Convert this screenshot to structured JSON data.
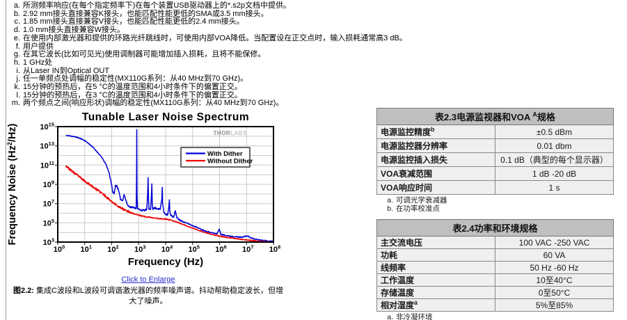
{
  "top_footnotes": [
    {
      "m": "a.",
      "t": "所测频率响应(在每个指定频率下)在每个装置USB驱动器上的*.s2p文档中提供。"
    },
    {
      "m": "b.",
      "t": "2.92 mm接头直接兼容K接头，也能匹配性能更低的SMA或3.5 mm接头。"
    },
    {
      "m": "c.",
      "t": "1.85 mm接头直接兼容V接头，也能匹配性能更低的2.4 mm接头。"
    },
    {
      "m": "d.",
      "t": "1.0 mm接头直接兼容W接头。"
    },
    {
      "m": "e.",
      "t": "在使用内部激光器和提供的环路光纤跳线时，可使用内部VOA降低。当配置设在正交点时，输入损耗通常高3 dB。"
    },
    {
      "m": "f.",
      "t": "用户提供"
    },
    {
      "m": "g.",
      "t": "在其它波长(比如可见光)使用调制器可能增加插入损耗，且将不能保修。"
    },
    {
      "m": "h.",
      "t": "1 GHz处"
    },
    {
      "m": "i.",
      "t": "从Laser IN到Optical OUT"
    },
    {
      "m": "j.",
      "t": "任一单频点处调幅的稳定性(MX110G系列：从40 MHz到70 GHz)。"
    },
    {
      "m": "k.",
      "t": "15分钟的预热后，在5 °C的温度范围和4小时条件下的偏置正交。"
    },
    {
      "m": "l.",
      "t": "15分钟的预热后，在3 °C的温度范围和4小时条件下的偏置正交。"
    },
    {
      "m": "m.",
      "t": "两个频点之间(响应形状)调幅的稳定性(MX110G系列：从40 MHz到70 GHz)。"
    }
  ],
  "figure": {
    "link_label": "Click to Enlarge",
    "caption_prefix": "图2.2:",
    "caption_line1": "集成C波段和L波段可调谐激光器的频率噪声谱。抖动帮助稳定波长，但增",
    "caption_line2": "大了噪声。"
  },
  "chart_data": {
    "type": "line",
    "title": "Tunable Laser Noise Spectrum",
    "xlabel": "Frequency (Hz)",
    "ylabel": "Frequency Noise (Hz²/Hz)",
    "x_scale": "log",
    "y_scale": "log",
    "x_range_exponents": [
      0,
      8
    ],
    "y_range_exponents": [
      3,
      15
    ],
    "x_tick_exponents": [
      0,
      1,
      2,
      3,
      4,
      5,
      6,
      7,
      8
    ],
    "y_tick_exponents": [
      3,
      5,
      7,
      9,
      11,
      13,
      15
    ],
    "grid": true,
    "legend_position": "upper-right-inside",
    "watermark_bold": "THOR",
    "watermark_light": "LABS",
    "colors": {
      "grid": "#c9c9c9",
      "axis": "#000000",
      "with_dither": "#0000d6",
      "without_dither": "#ee0000"
    },
    "series": [
      {
        "name": "With Dither",
        "color": "#0000d6",
        "seed": 11,
        "noise": [
          [
            1.9,
            0.05
          ],
          [
            2.7,
            0.1
          ],
          [
            4.6,
            0.09
          ],
          [
            8.1,
            0.05
          ]
        ],
        "points": [
          [
            0.3,
            14.08
          ],
          [
            0.5,
            14.02
          ],
          [
            0.7,
            13.9
          ],
          [
            0.9,
            13.7
          ],
          [
            1.05,
            13.45
          ],
          [
            1.2,
            13.12
          ],
          [
            1.35,
            12.72
          ],
          [
            1.5,
            12.25
          ],
          [
            1.65,
            11.72
          ],
          [
            1.8,
            11.0
          ],
          [
            1.9,
            10.25
          ],
          [
            1.97,
            9.35
          ],
          [
            2.03,
            8.3
          ],
          [
            2.09,
            8.0
          ],
          [
            2.14,
            8.9
          ],
          [
            2.2,
            8.8
          ],
          [
            2.27,
            8.2
          ],
          [
            2.32,
            7.5
          ],
          [
            2.4,
            7.3
          ],
          [
            2.46,
            7.95
          ],
          [
            2.52,
            7.4
          ],
          [
            2.58,
            6.9
          ],
          [
            2.65,
            6.68
          ],
          [
            2.75,
            6.62
          ],
          [
            2.85,
            6.58
          ],
          [
            2.91,
            6.5
          ],
          [
            2.925,
            10.5
          ],
          [
            2.93,
            14.7
          ],
          [
            2.94,
            8.0
          ],
          [
            2.96,
            6.45
          ],
          [
            3.08,
            6.32
          ],
          [
            3.2,
            6.3
          ],
          [
            3.3,
            6.38
          ],
          [
            3.335,
            8.0
          ],
          [
            3.35,
            9.7
          ],
          [
            3.365,
            7.5
          ],
          [
            3.38,
            6.42
          ],
          [
            3.44,
            6.4
          ],
          [
            3.475,
            8.0
          ],
          [
            3.49,
            9.05
          ],
          [
            3.505,
            7.0
          ],
          [
            3.52,
            6.45
          ],
          [
            3.6,
            6.55
          ],
          [
            3.7,
            6.48
          ],
          [
            3.8,
            6.4
          ],
          [
            3.86,
            7.5
          ],
          [
            3.875,
            8.7
          ],
          [
            3.89,
            7.0
          ],
          [
            3.93,
            6.15
          ],
          [
            4.0,
            5.9
          ],
          [
            4.08,
            5.85
          ],
          [
            4.125,
            6.8
          ],
          [
            4.14,
            7.4
          ],
          [
            4.155,
            6.3
          ],
          [
            4.18,
            5.8
          ],
          [
            4.3,
            5.6
          ],
          [
            4.36,
            6.25
          ],
          [
            4.42,
            5.5
          ],
          [
            4.55,
            5.25
          ],
          [
            4.7,
            5.05
          ],
          [
            4.85,
            4.9
          ],
          [
            5.0,
            4.7
          ],
          [
            5.15,
            4.55
          ],
          [
            5.3,
            4.35
          ],
          [
            5.45,
            4.18
          ],
          [
            5.6,
            4.05
          ],
          [
            5.75,
            3.95
          ],
          [
            5.9,
            3.85
          ],
          [
            5.99,
            4.35
          ],
          [
            6.05,
            3.8
          ],
          [
            6.2,
            3.72
          ],
          [
            6.4,
            3.62
          ],
          [
            6.6,
            3.55
          ],
          [
            6.8,
            3.5
          ],
          [
            6.95,
            3.6
          ],
          [
            7.05,
            3.62
          ],
          [
            7.15,
            3.45
          ],
          [
            7.3,
            3.32
          ],
          [
            7.5,
            3.22
          ],
          [
            7.7,
            3.15
          ],
          [
            7.85,
            3.1
          ],
          [
            8.0,
            3.1
          ]
        ]
      },
      {
        "name": "Without Dither",
        "color": "#ee0000",
        "seed": 23,
        "noise": [
          [
            2.7,
            0.12
          ],
          [
            4.2,
            0.06
          ],
          [
            8.1,
            0.045
          ]
        ],
        "points": [
          [
            0.3,
            10.95
          ],
          [
            0.45,
            10.55
          ],
          [
            0.6,
            10.2
          ],
          [
            0.75,
            9.9
          ],
          [
            0.9,
            9.55
          ],
          [
            1.05,
            9.25
          ],
          [
            1.2,
            8.95
          ],
          [
            1.35,
            8.65
          ],
          [
            1.5,
            8.35
          ],
          [
            1.65,
            8.05
          ],
          [
            1.8,
            7.7
          ],
          [
            1.95,
            7.35
          ],
          [
            2.1,
            7.0
          ],
          [
            2.25,
            6.7
          ],
          [
            2.4,
            6.45
          ],
          [
            2.55,
            6.25
          ],
          [
            2.7,
            6.08
          ],
          [
            2.85,
            5.92
          ],
          [
            3.0,
            5.8
          ],
          [
            3.15,
            5.7
          ],
          [
            3.3,
            5.62
          ],
          [
            3.45,
            5.55
          ],
          [
            3.6,
            5.5
          ],
          [
            3.75,
            5.45
          ],
          [
            3.9,
            5.42
          ],
          [
            4.05,
            5.38
          ],
          [
            4.2,
            5.28
          ],
          [
            4.35,
            5.15
          ],
          [
            4.5,
            5.0
          ],
          [
            4.65,
            4.82
          ],
          [
            4.8,
            4.65
          ],
          [
            4.95,
            4.5
          ],
          [
            5.1,
            4.35
          ],
          [
            5.25,
            4.2
          ],
          [
            5.4,
            4.05
          ],
          [
            5.55,
            3.92
          ],
          [
            5.7,
            3.8
          ],
          [
            5.85,
            3.7
          ],
          [
            6.0,
            3.62
          ],
          [
            6.15,
            3.55
          ],
          [
            6.3,
            3.48
          ],
          [
            6.45,
            3.42
          ],
          [
            6.6,
            3.36
          ],
          [
            6.75,
            3.3
          ],
          [
            6.9,
            3.26
          ],
          [
            7.05,
            3.22
          ],
          [
            7.2,
            3.16
          ],
          [
            7.4,
            3.1
          ],
          [
            7.6,
            3.06
          ],
          [
            7.8,
            3.02
          ],
          [
            8.0,
            3.0
          ]
        ]
      }
    ]
  },
  "tables": [
    {
      "title": "表2.3电源监视器和VOA ",
      "title_sup": "A",
      "title_tail": "规格",
      "rows": [
        {
          "label": "电源监控精度",
          "sup": "b",
          "value": "±0.5 dBm"
        },
        {
          "label": "电源监控器分辨率",
          "sup": "",
          "value": "0.01 dbm"
        },
        {
          "label": "电源监控插入损失",
          "sup": "",
          "value": "0.1 dB（典型的每个显示器）"
        },
        {
          "label": "VOA衰减范围",
          "sup": "",
          "value": "1 dB -20 dB"
        },
        {
          "label": "VOA响应时间",
          "sup": "",
          "value": "1 s"
        }
      ],
      "footnotes": [
        {
          "m": "a.",
          "t": "可调光学衰减器"
        },
        {
          "m": "b.",
          "t": "在功率校准点"
        }
      ]
    },
    {
      "title": "表2.4功率和环境规格",
      "title_sup": "",
      "title_tail": "",
      "rows": [
        {
          "label": "主交流电压",
          "sup": "",
          "value": "100 VAC -250 VAC"
        },
        {
          "label": "功耗",
          "sup": "",
          "value": "60 VA"
        },
        {
          "label": "线频率",
          "sup": "",
          "value": "50 Hz -60 Hz"
        },
        {
          "label": "工作温度",
          "sup": "",
          "value": "10至40°C"
        },
        {
          "label": "存储温度",
          "sup": "",
          "value": "0至50°C"
        },
        {
          "label": "相对湿度",
          "sup": "a",
          "value": "5%至85%"
        }
      ],
      "footnotes": [
        {
          "m": "a.",
          "t": "非冷凝环境"
        }
      ]
    }
  ]
}
